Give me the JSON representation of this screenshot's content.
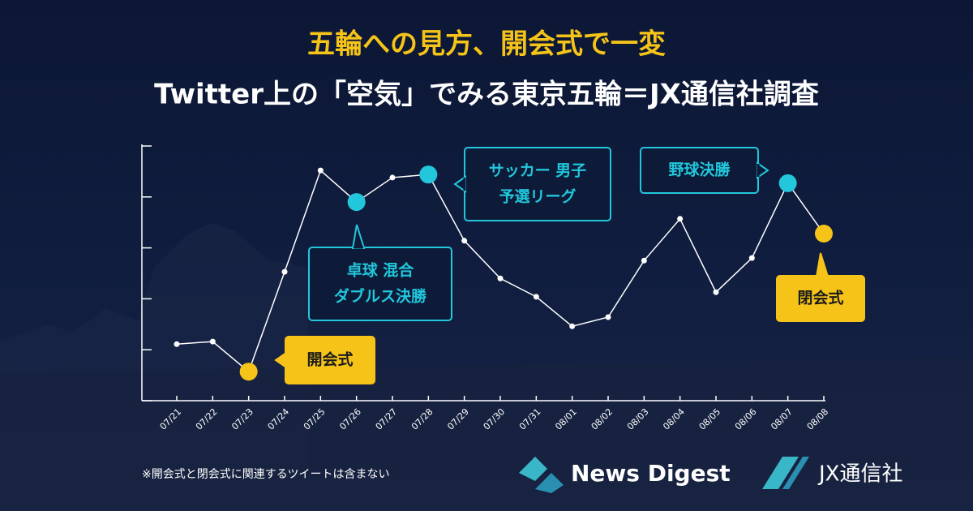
{
  "chart_data": {
    "type": "line",
    "title": "五輪への見方、開会式で一変",
    "subtitle": "Twitter上の「空気」でみる東京五輪＝JX通信社調査",
    "categories": [
      "07/21",
      "07/22",
      "07/23",
      "07/24",
      "07/25",
      "07/26",
      "07/27",
      "07/28",
      "07/29",
      "07/30",
      "07/31",
      "08/01",
      "08/02",
      "08/03",
      "08/04",
      "08/05",
      "08/06",
      "08/07",
      "08/08"
    ],
    "values": [
      1.11,
      1.16,
      0.57,
      2.53,
      4.52,
      3.9,
      4.38,
      4.44,
      3.14,
      2.4,
      2.04,
      1.46,
      1.64,
      2.75,
      3.57,
      2.13,
      2.8,
      4.27,
      3.28
    ],
    "color": "#ffffff",
    "ylim": [
      0,
      5
    ],
    "yticks": [
      0,
      1,
      2,
      3,
      4,
      5
    ],
    "annotations": [
      {
        "category": "07/23",
        "lines": [
          "開会式"
        ],
        "color": "#f6c418",
        "filled": true
      },
      {
        "category": "07/26",
        "lines": [
          "卓球 混合",
          "ダブルス決勝"
        ],
        "color": "#22c7dc",
        "filled": false
      },
      {
        "category": "07/28",
        "lines": [
          "サッカー 男子",
          "予選リーグ"
        ],
        "color": "#22c7dc",
        "filled": false
      },
      {
        "category": "08/07",
        "lines": [
          "野球決勝"
        ],
        "color": "#22c7dc",
        "filled": false
      },
      {
        "category": "08/08",
        "lines": [
          "閉会式"
        ],
        "color": "#f6c418",
        "filled": true
      }
    ],
    "note": "※開会式と閉会式に関連するツイートは含まない",
    "logos": [
      "News Digest",
      "JX通信社"
    ]
  }
}
